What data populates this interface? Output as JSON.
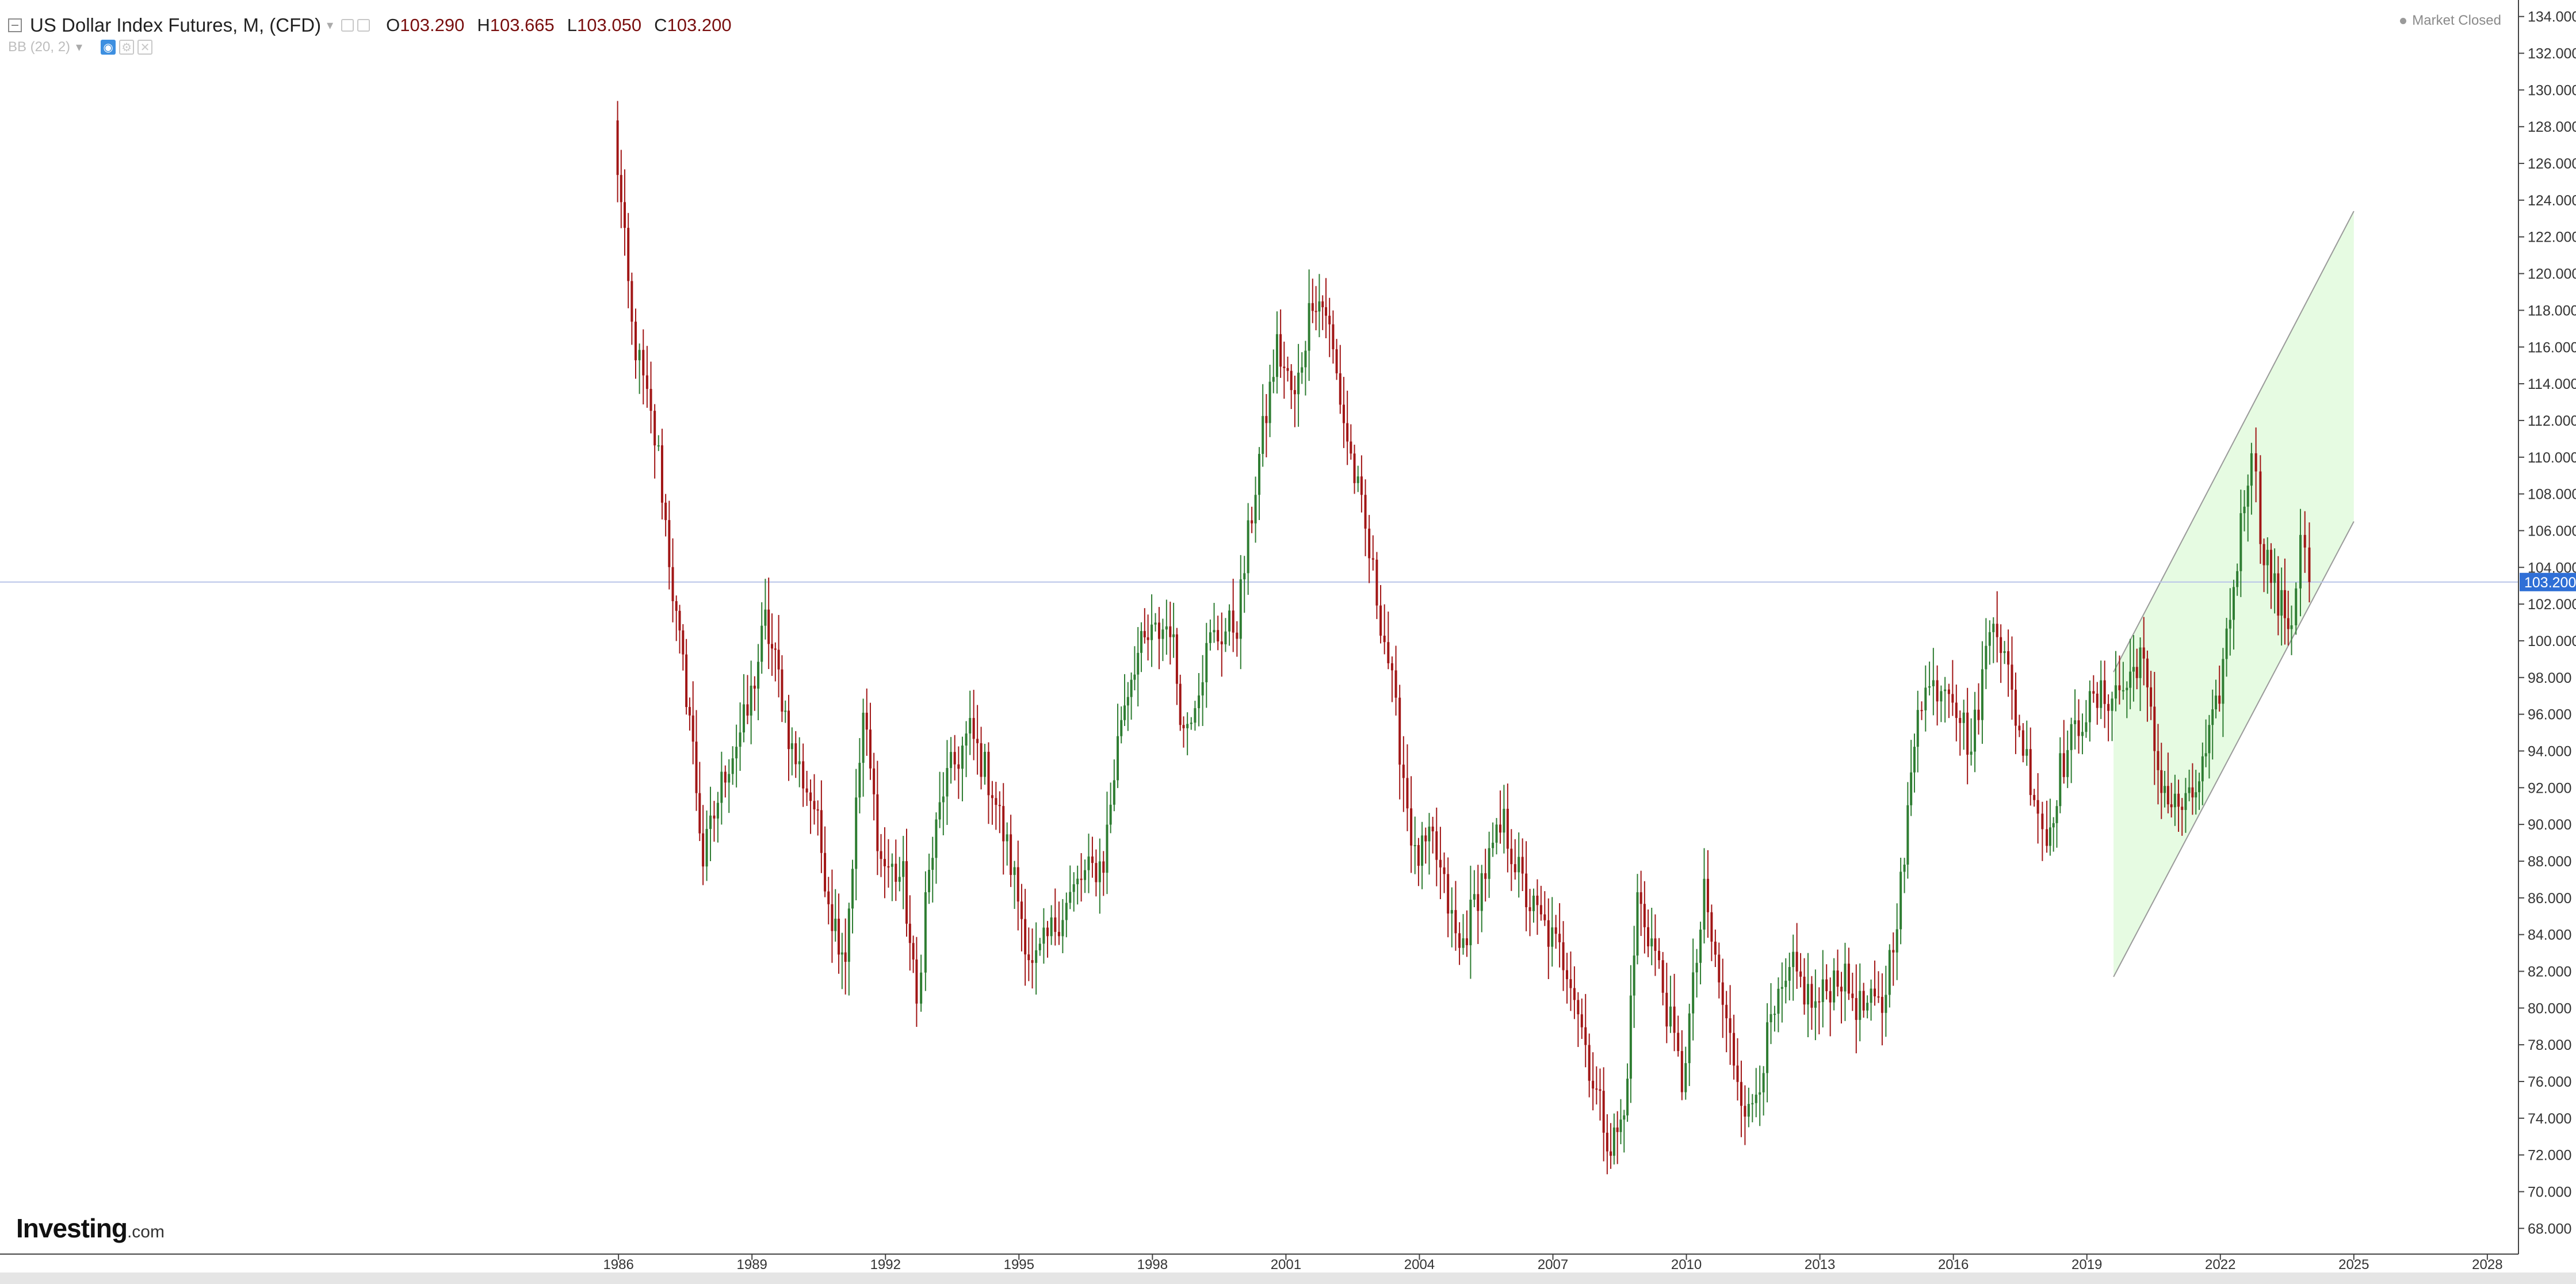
{
  "header": {
    "symbol_title": "US Dollar Index Futures, M, (CFD)",
    "open_label": "O",
    "open_value": "103.290",
    "high_label": "H",
    "high_value": "103.665",
    "low_label": "L",
    "low_value": "103.050",
    "close_label": "C",
    "close_value": "103.200",
    "indicator": "BB (20, 2)",
    "market_status": "Market Closed"
  },
  "branding": {
    "logo_main": "Investing",
    "logo_suffix": ".com"
  },
  "colors": {
    "up_candle": "#2e7d32",
    "down_candle": "#a11616",
    "price_line": "#b8c4e8",
    "price_tag_bg": "#2f6fd6",
    "channel_fill": "#e6fbe2",
    "channel_line": "#9a9a9a",
    "axis": "#444444"
  },
  "chart_data": {
    "type": "candlestick",
    "title": "US Dollar Index Futures, M, (CFD)",
    "interval": "monthly",
    "x_tick_labels": [
      "1986",
      "1989",
      "1992",
      "1995",
      "1998",
      "2001",
      "2004",
      "2007",
      "2010",
      "2013",
      "2016",
      "2019",
      "2022",
      "2025",
      "2028"
    ],
    "x_range": [
      1972.1,
      2028.7
    ],
    "y_tick_labels": [
      "68.000",
      "70.000",
      "72.000",
      "74.000",
      "76.000",
      "78.000",
      "80.000",
      "82.000",
      "84.000",
      "86.000",
      "88.000",
      "90.000",
      "92.000",
      "94.000",
      "96.000",
      "98.000",
      "100.000",
      "102.000",
      "104.000",
      "106.000",
      "108.000",
      "110.000",
      "112.000",
      "114.000",
      "116.000",
      "118.000",
      "120.000",
      "122.000",
      "124.000",
      "126.000",
      "128.000",
      "130.000",
      "132.000",
      "134.000"
    ],
    "y_range": [
      66.6,
      134.9
    ],
    "current_price": 103.2,
    "current_price_label": "103.200",
    "last_bar_ohlc": {
      "open": 103.29,
      "high": 103.665,
      "low": 103.05,
      "close": 103.2
    },
    "price_path": [
      [
        1985.9,
        128.0
      ],
      [
        1986.3,
        117.0
      ],
      [
        1986.9,
        110.0
      ],
      [
        1987.3,
        101.0
      ],
      [
        1987.6,
        96.0
      ],
      [
        1987.9,
        88.0
      ],
      [
        1988.4,
        93.0
      ],
      [
        1988.9,
        96.0
      ],
      [
        1989.3,
        101.0
      ],
      [
        1989.6,
        98.0
      ],
      [
        1989.9,
        94.0
      ],
      [
        1990.4,
        91.0
      ],
      [
        1990.8,
        85.0
      ],
      [
        1991.1,
        83.0
      ],
      [
        1991.5,
        96.0
      ],
      [
        1991.9,
        88.0
      ],
      [
        1992.4,
        87.0
      ],
      [
        1992.7,
        80.0
      ],
      [
        1992.9,
        86.0
      ],
      [
        1993.3,
        92.0
      ],
      [
        1993.9,
        95.0
      ],
      [
        1994.4,
        92.0
      ],
      [
        1994.9,
        87.0
      ],
      [
        1995.3,
        82.0
      ],
      [
        1995.9,
        85.0
      ],
      [
        1996.4,
        87.0
      ],
      [
        1996.9,
        88.0
      ],
      [
        1997.3,
        96.0
      ],
      [
        1997.6,
        99.0
      ],
      [
        1997.9,
        100.0
      ],
      [
        1998.4,
        101.0
      ],
      [
        1998.7,
        95.0
      ],
      [
        1999.3,
        100.0
      ],
      [
        1999.9,
        101.0
      ],
      [
        2000.4,
        110.0
      ],
      [
        2000.8,
        116.0
      ],
      [
        2001.2,
        113.0
      ],
      [
        2001.6,
        119.0
      ],
      [
        2001.9,
        118.0
      ],
      [
        2002.3,
        112.0
      ],
      [
        2002.7,
        107.0
      ],
      [
        2003.3,
        99.0
      ],
      [
        2003.9,
        88.0
      ],
      [
        2004.3,
        89.0
      ],
      [
        2004.9,
        83.0
      ],
      [
        2005.4,
        87.0
      ],
      [
        2005.9,
        90.0
      ],
      [
        2006.4,
        86.0
      ],
      [
        2006.9,
        84.0
      ],
      [
        2007.4,
        82.0
      ],
      [
        2007.9,
        76.0
      ],
      [
        2008.3,
        72.5
      ],
      [
        2008.6,
        74.0
      ],
      [
        2008.9,
        86.0
      ],
      [
        2009.3,
        83.0
      ],
      [
        2009.9,
        76.0
      ],
      [
        2010.4,
        86.0
      ],
      [
        2010.9,
        79.0
      ],
      [
        2011.4,
        74.0
      ],
      [
        2011.9,
        79.0
      ],
      [
        2012.4,
        82.0
      ],
      [
        2012.9,
        80.0
      ],
      [
        2013.4,
        82.0
      ],
      [
        2013.9,
        80.0
      ],
      [
        2014.4,
        80.0
      ],
      [
        2014.9,
        88.0
      ],
      [
        2015.2,
        97.0
      ],
      [
        2015.9,
        98.0
      ],
      [
        2016.4,
        94.0
      ],
      [
        2016.9,
        102.0
      ],
      [
        2017.4,
        96.0
      ],
      [
        2017.9,
        91.0
      ],
      [
        2018.1,
        89.0
      ],
      [
        2018.4,
        93.0
      ],
      [
        2018.9,
        96.0
      ],
      [
        2019.4,
        97.0
      ],
      [
        2019.9,
        97.5
      ],
      [
        2020.2,
        99.5
      ],
      [
        2020.6,
        93.0
      ],
      [
        2020.9,
        91.0
      ],
      [
        2021.3,
        91.0
      ],
      [
        2021.6,
        93.0
      ],
      [
        2021.9,
        96.0
      ],
      [
        2022.3,
        103.0
      ],
      [
        2022.7,
        111.0
      ],
      [
        2022.9,
        106.0
      ],
      [
        2023.3,
        102.0
      ],
      [
        2023.6,
        101.0
      ],
      [
        2023.8,
        106.0
      ],
      [
        2024.0,
        103.2
      ]
    ],
    "channel": {
      "lower_line": [
        [
          2019.6,
          81.7
        ],
        [
          2025.0,
          106.5
        ]
      ],
      "upper_line": [
        [
          2019.6,
          98.3
        ],
        [
          2025.0,
          123.4
        ]
      ]
    }
  }
}
